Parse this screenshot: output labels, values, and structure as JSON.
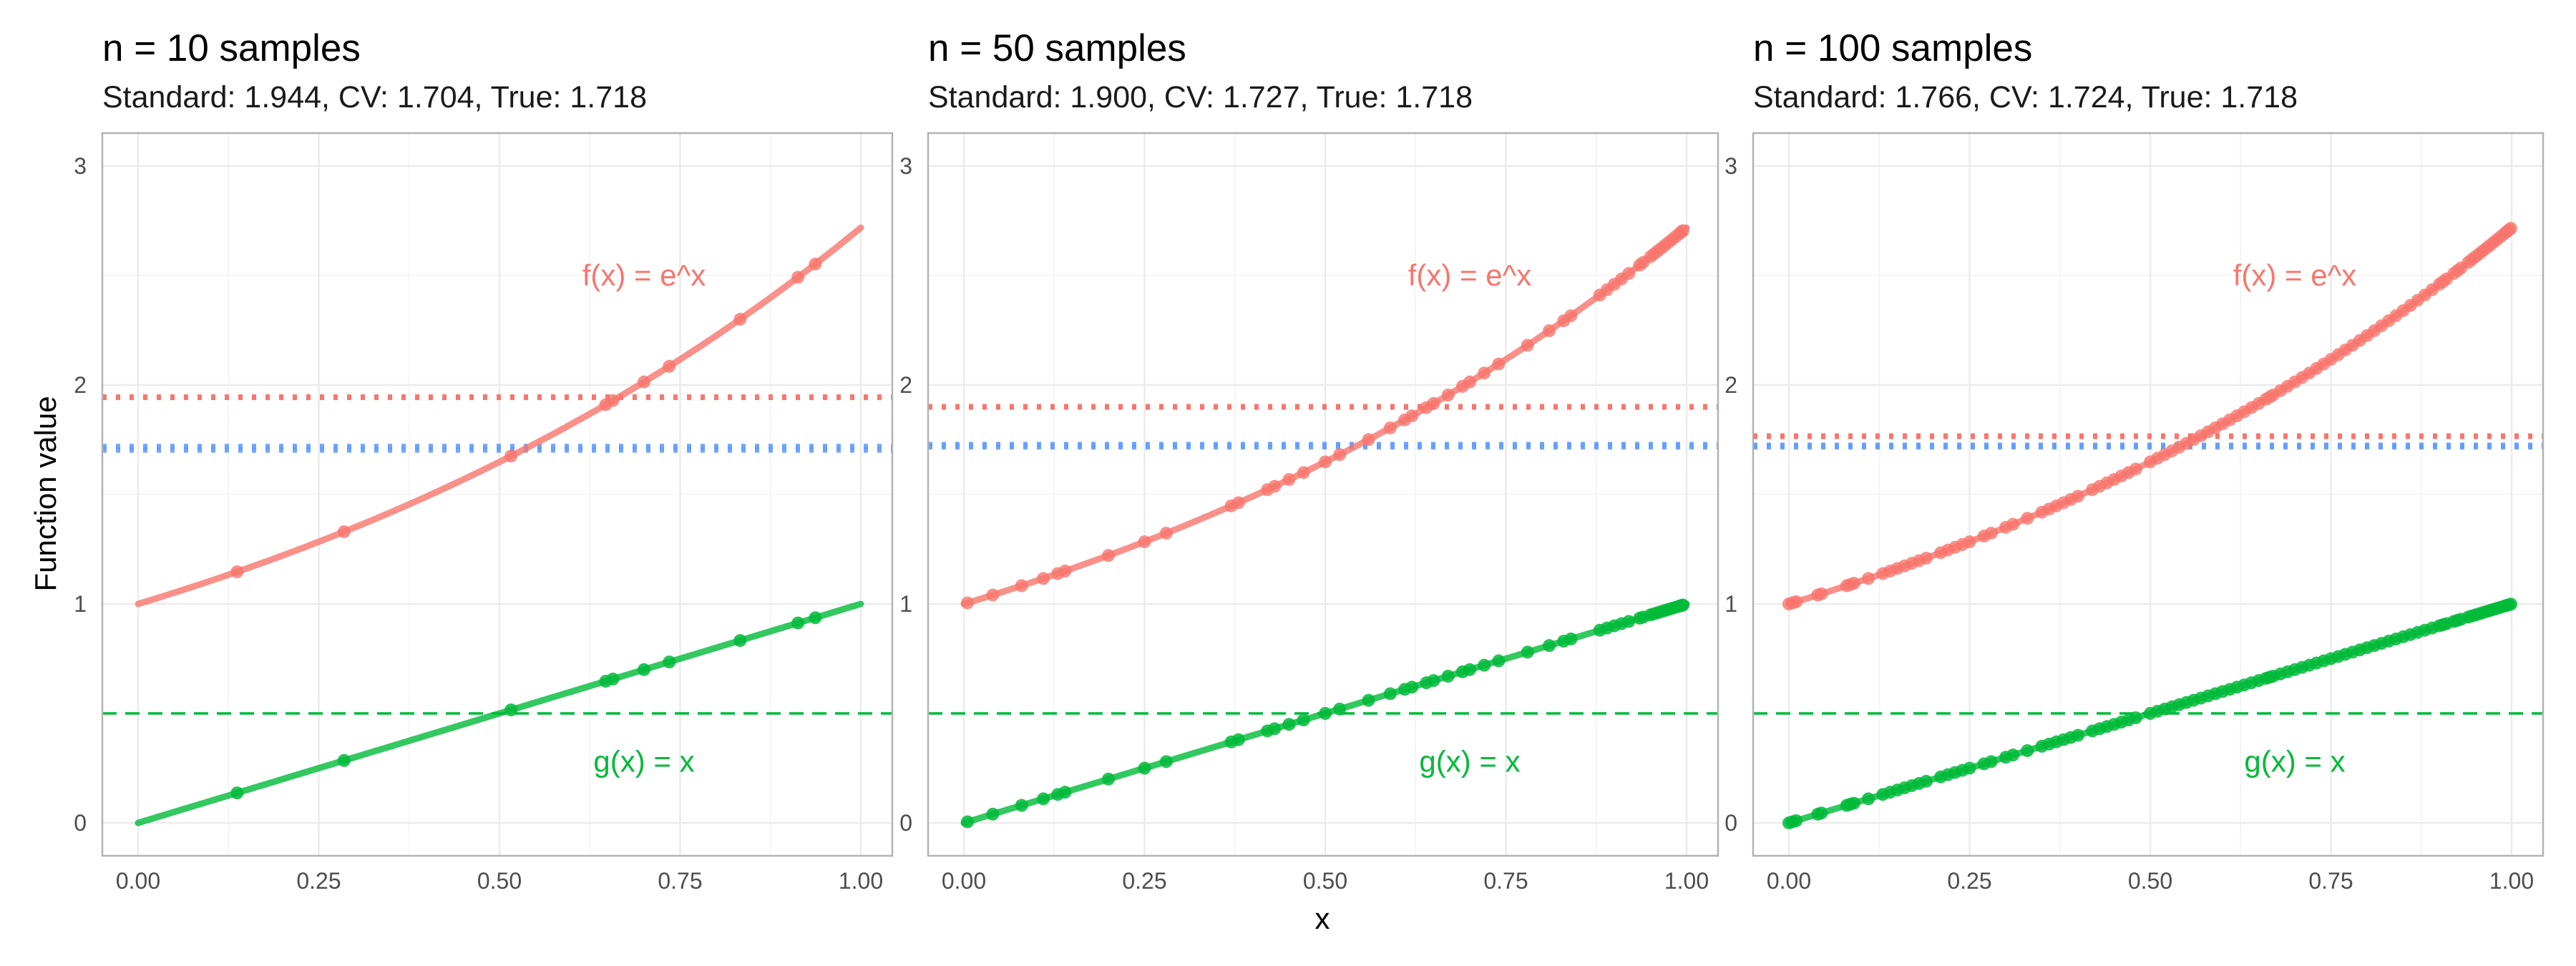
{
  "figure": {
    "xlabel": "x",
    "ylabel": "Function value"
  },
  "colors": {
    "f": "#F8766D",
    "g": "#00BA38",
    "true": "#619CFF",
    "panel_border": "#b3b3b3",
    "grid": "#ebebeb"
  },
  "chart_data": [
    {
      "type": "line",
      "title": "n = 10 samples",
      "subtitle": "Standard: 1.944, CV: 1.704, True: 1.718",
      "xlim": [
        0,
        1
      ],
      "ylim": [
        0,
        3
      ],
      "x_ticks": [
        "0.00",
        "0.25",
        "0.50",
        "0.75",
        "1.00"
      ],
      "y_ticks": [
        "0",
        "1",
        "2",
        "3"
      ],
      "annotations": [
        {
          "text": "f(x) = e^x",
          "x": 0.7,
          "y": 2.5,
          "series": "f"
        },
        {
          "text": "g(x) = x",
          "x": 0.7,
          "y": 0.28,
          "series": "g"
        }
      ],
      "hlines": [
        {
          "y": 1.944,
          "style": "dotted",
          "color": "f"
        },
        {
          "y": 1.704,
          "style": "dotted",
          "color": "true"
        },
        {
          "y": 1.718,
          "style": "dotted",
          "color": "true"
        },
        {
          "y": 0.5,
          "style": "dashed",
          "color": "g"
        }
      ],
      "sample_x": [
        0.137,
        0.285,
        0.516,
        0.647,
        0.657,
        0.7,
        0.735,
        0.833,
        0.913,
        0.937
      ]
    },
    {
      "type": "line",
      "title": "n = 50 samples",
      "subtitle": "Standard: 1.900, CV: 1.727, True: 1.718",
      "xlim": [
        0,
        1
      ],
      "ylim": [
        0,
        3
      ],
      "x_ticks": [
        "0.00",
        "0.25",
        "0.50",
        "0.75",
        "1.00"
      ],
      "y_ticks": [
        "0",
        "1",
        "2",
        "3"
      ],
      "annotations": [
        {
          "text": "f(x) = e^x",
          "x": 0.7,
          "y": 2.5,
          "series": "f"
        },
        {
          "text": "g(x) = x",
          "x": 0.7,
          "y": 0.28,
          "series": "g"
        }
      ],
      "hlines": [
        {
          "y": 1.9,
          "style": "dotted",
          "color": "f"
        },
        {
          "y": 1.727,
          "style": "dotted",
          "color": "true"
        },
        {
          "y": 1.718,
          "style": "dotted",
          "color": "true"
        },
        {
          "y": 0.5,
          "style": "dashed",
          "color": "g"
        }
      ],
      "sample_x": [
        0.005,
        0.04,
        0.08,
        0.11,
        0.13,
        0.14,
        0.2,
        0.25,
        0.28,
        0.37,
        0.38,
        0.42,
        0.43,
        0.45,
        0.47,
        0.5,
        0.52,
        0.56,
        0.59,
        0.61,
        0.62,
        0.64,
        0.65,
        0.67,
        0.69,
        0.7,
        0.72,
        0.74,
        0.78,
        0.81,
        0.83,
        0.84,
        0.88,
        0.89,
        0.9,
        0.91,
        0.92,
        0.935,
        0.94,
        0.95,
        0.955,
        0.96,
        0.965,
        0.97,
        0.975,
        0.98,
        0.985,
        0.99,
        0.993,
        0.995
      ]
    },
    {
      "type": "line",
      "title": "n = 100 samples",
      "subtitle": "Standard: 1.766, CV: 1.724, True: 1.718",
      "xlim": [
        0,
        1
      ],
      "ylim": [
        0,
        3
      ],
      "x_ticks": [
        "0.00",
        "0.25",
        "0.50",
        "0.75",
        "1.00"
      ],
      "y_ticks": [
        "0",
        "1",
        "2",
        "3"
      ],
      "annotations": [
        {
          "text": "f(x) = e^x",
          "x": 0.7,
          "y": 2.5,
          "series": "f"
        },
        {
          "text": "g(x) = x",
          "x": 0.7,
          "y": 0.28,
          "series": "g"
        }
      ],
      "hlines": [
        {
          "y": 1.766,
          "style": "dotted",
          "color": "f"
        },
        {
          "y": 1.724,
          "style": "dotted",
          "color": "true"
        },
        {
          "y": 1.718,
          "style": "dotted",
          "color": "true"
        },
        {
          "y": 0.5,
          "style": "dashed",
          "color": "g"
        }
      ],
      "sample_x": [
        0.0,
        0.005,
        0.01,
        0.04,
        0.045,
        0.08,
        0.085,
        0.09,
        0.11,
        0.13,
        0.14,
        0.15,
        0.16,
        0.17,
        0.18,
        0.19,
        0.21,
        0.22,
        0.23,
        0.24,
        0.25,
        0.27,
        0.28,
        0.3,
        0.31,
        0.33,
        0.35,
        0.36,
        0.37,
        0.38,
        0.39,
        0.4,
        0.42,
        0.43,
        0.44,
        0.45,
        0.46,
        0.47,
        0.48,
        0.5,
        0.51,
        0.52,
        0.53,
        0.54,
        0.55,
        0.56,
        0.57,
        0.58,
        0.59,
        0.6,
        0.61,
        0.62,
        0.63,
        0.64,
        0.65,
        0.66,
        0.665,
        0.67,
        0.68,
        0.69,
        0.7,
        0.71,
        0.72,
        0.73,
        0.74,
        0.75,
        0.76,
        0.77,
        0.78,
        0.79,
        0.8,
        0.81,
        0.82,
        0.83,
        0.84,
        0.85,
        0.86,
        0.87,
        0.88,
        0.89,
        0.9,
        0.905,
        0.91,
        0.92,
        0.925,
        0.93,
        0.94,
        0.945,
        0.95,
        0.955,
        0.96,
        0.965,
        0.97,
        0.975,
        0.98,
        0.985,
        0.99,
        0.993,
        0.996,
        0.999
      ]
    }
  ]
}
